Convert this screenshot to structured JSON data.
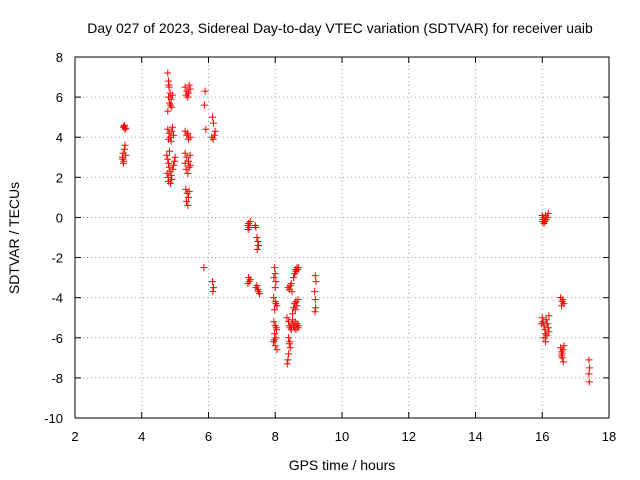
{
  "chart_data": {
    "type": "scatter",
    "title": "Day 027 of 2023, Sidereal Day-to-day VTEC variation (SDTVAR) for receiver uaib",
    "xlabel": "GPS time / hours",
    "ylabel": "SDTVAR / TECUs",
    "xlim": [
      2,
      18
    ],
    "ylim": [
      -10,
      8
    ],
    "xticks": [
      "2",
      "4",
      "6",
      "8",
      "10",
      "12",
      "14",
      "16",
      "18"
    ],
    "yticks": [
      "-10",
      "-8",
      "-6",
      "-4",
      "-2",
      "0",
      "2",
      "4",
      "6",
      "8"
    ],
    "grid": true,
    "marker": "+",
    "color": "#ff0000",
    "series": [
      {
        "name": "SDTVAR",
        "points": [
          [
            3.45,
            4.5
          ],
          [
            3.47,
            4.55
          ],
          [
            3.5,
            4.4
          ],
          [
            3.48,
            4.6
          ],
          [
            3.52,
            4.45
          ],
          [
            3.42,
            3.0
          ],
          [
            3.44,
            3.2
          ],
          [
            3.46,
            2.8
          ],
          [
            3.48,
            3.4
          ],
          [
            3.5,
            3.6
          ],
          [
            3.45,
            2.7
          ],
          [
            3.52,
            3.1
          ],
          [
            3.43,
            2.9
          ],
          [
            4.78,
            7.2
          ],
          [
            4.8,
            6.8
          ],
          [
            4.82,
            6.5
          ],
          [
            4.85,
            6.2
          ],
          [
            4.8,
            6.0
          ],
          [
            4.88,
            5.9
          ],
          [
            4.83,
            5.7
          ],
          [
            4.9,
            5.5
          ],
          [
            4.78,
            5.3
          ],
          [
            4.86,
            5.6
          ],
          [
            4.92,
            6.1
          ],
          [
            4.81,
            6.6
          ],
          [
            4.78,
            4.4
          ],
          [
            4.82,
            4.2
          ],
          [
            4.85,
            4.0
          ],
          [
            4.88,
            3.8
          ],
          [
            4.9,
            4.3
          ],
          [
            4.95,
            4.1
          ],
          [
            4.8,
            3.9
          ],
          [
            4.92,
            4.5
          ],
          [
            4.75,
            3.1
          ],
          [
            4.78,
            2.9
          ],
          [
            4.8,
            2.7
          ],
          [
            4.82,
            2.5
          ],
          [
            4.85,
            2.3
          ],
          [
            4.88,
            2.1
          ],
          [
            4.9,
            1.9
          ],
          [
            4.8,
            1.8
          ],
          [
            4.76,
            2.2
          ],
          [
            4.95,
            2.6
          ],
          [
            4.98,
            2.8
          ],
          [
            5.0,
            3.0
          ],
          [
            4.83,
            3.3
          ],
          [
            4.93,
            2.4
          ],
          [
            4.86,
            1.7
          ],
          [
            4.79,
            2.0
          ],
          [
            5.3,
            6.5
          ],
          [
            5.35,
            6.3
          ],
          [
            5.4,
            6.2
          ],
          [
            5.45,
            6.4
          ],
          [
            5.38,
            6.0
          ],
          [
            5.42,
            6.6
          ],
          [
            5.33,
            6.1
          ],
          [
            5.3,
            4.3
          ],
          [
            5.35,
            4.1
          ],
          [
            5.4,
            3.9
          ],
          [
            5.45,
            4.0
          ],
          [
            5.38,
            4.2
          ],
          [
            5.3,
            3.2
          ],
          [
            5.35,
            3.0
          ],
          [
            5.4,
            2.8
          ],
          [
            5.45,
            2.6
          ],
          [
            5.33,
            2.4
          ],
          [
            5.38,
            2.2
          ],
          [
            5.42,
            2.5
          ],
          [
            5.3,
            2.7
          ],
          [
            5.45,
            3.1
          ],
          [
            5.32,
            1.4
          ],
          [
            5.36,
            1.2
          ],
          [
            5.4,
            1.0
          ],
          [
            5.34,
            0.8
          ],
          [
            5.42,
            1.3
          ],
          [
            5.38,
            0.6
          ],
          [
            5.9,
            6.3
          ],
          [
            5.88,
            5.6
          ],
          [
            5.92,
            4.4
          ],
          [
            5.86,
            -2.5
          ],
          [
            6.12,
            5.0
          ],
          [
            6.15,
            4.7
          ],
          [
            6.18,
            4.1
          ],
          [
            6.14,
            3.9
          ],
          [
            6.2,
            4.3
          ],
          [
            6.1,
            4.0
          ],
          [
            6.12,
            -3.2
          ],
          [
            6.15,
            -3.5
          ],
          [
            6.13,
            -3.7
          ],
          [
            7.18,
            -0.4
          ],
          [
            7.2,
            -0.3
          ],
          [
            7.22,
            -0.5
          ],
          [
            7.19,
            -0.6
          ],
          [
            7.25,
            -0.2
          ],
          [
            7.2,
            -3.0
          ],
          [
            7.22,
            -3.2
          ],
          [
            7.18,
            -3.3
          ],
          [
            7.25,
            -3.1
          ],
          [
            7.42,
            -0.5
          ],
          [
            7.45,
            -1.0
          ],
          [
            7.48,
            -1.2
          ],
          [
            7.5,
            -1.4
          ],
          [
            7.46,
            -1.6
          ],
          [
            7.4,
            -0.4
          ],
          [
            7.45,
            -3.4
          ],
          [
            7.48,
            -3.6
          ],
          [
            7.5,
            -3.7
          ],
          [
            7.53,
            -3.8
          ],
          [
            7.42,
            -3.5
          ],
          [
            7.98,
            -2.5
          ],
          [
            8.0,
            -2.8
          ],
          [
            7.96,
            -3.0
          ],
          [
            8.02,
            -3.2
          ],
          [
            8.0,
            -3.5
          ],
          [
            7.95,
            -4.0
          ],
          [
            8.0,
            -4.2
          ],
          [
            8.05,
            -4.4
          ],
          [
            7.98,
            -4.6
          ],
          [
            8.02,
            -4.3
          ],
          [
            7.96,
            -5.2
          ],
          [
            8.0,
            -5.4
          ],
          [
            8.04,
            -5.6
          ],
          [
            7.98,
            -5.8
          ],
          [
            8.02,
            -6.0
          ],
          [
            7.95,
            -6.2
          ],
          [
            8.0,
            -6.4
          ],
          [
            8.05,
            -6.6
          ],
          [
            7.98,
            -6.1
          ],
          [
            8.03,
            -5.5
          ],
          [
            8.38,
            -3.5
          ],
          [
            8.42,
            -3.6
          ],
          [
            8.45,
            -3.4
          ],
          [
            8.48,
            -3.3
          ],
          [
            8.5,
            -3.7
          ],
          [
            8.35,
            -5.0
          ],
          [
            8.4,
            -5.2
          ],
          [
            8.42,
            -5.4
          ],
          [
            8.45,
            -5.5
          ],
          [
            8.48,
            -5.6
          ],
          [
            8.5,
            -5.3
          ],
          [
            8.52,
            -5.1
          ],
          [
            8.55,
            -5.4
          ],
          [
            8.58,
            -5.5
          ],
          [
            8.6,
            -5.2
          ],
          [
            8.62,
            -5.6
          ],
          [
            8.65,
            -5.3
          ],
          [
            8.68,
            -5.5
          ],
          [
            8.7,
            -5.4
          ],
          [
            8.4,
            -6.0
          ],
          [
            8.42,
            -6.3
          ],
          [
            8.45,
            -6.5
          ],
          [
            8.4,
            -6.8
          ],
          [
            8.38,
            -7.1
          ],
          [
            8.36,
            -7.3
          ],
          [
            8.44,
            -6.2
          ],
          [
            8.55,
            -3.0
          ],
          [
            8.58,
            -2.8
          ],
          [
            8.6,
            -2.6
          ],
          [
            8.62,
            -2.7
          ],
          [
            8.65,
            -2.5
          ],
          [
            8.68,
            -2.6
          ],
          [
            8.7,
            -2.5
          ],
          [
            8.55,
            -4.5
          ],
          [
            8.58,
            -4.3
          ],
          [
            8.6,
            -4.6
          ],
          [
            8.62,
            -4.2
          ],
          [
            8.65,
            -4.4
          ],
          [
            8.68,
            -4.1
          ],
          [
            8.52,
            -4.8
          ],
          [
            9.2,
            -2.9
          ],
          [
            9.22,
            -3.2
          ],
          [
            9.18,
            -3.7
          ],
          [
            9.2,
            -4.1
          ],
          [
            9.21,
            -4.5
          ],
          [
            9.19,
            -4.7
          ],
          [
            16.0,
            0.1
          ],
          [
            16.02,
            -0.1
          ],
          [
            16.05,
            0.0
          ],
          [
            16.08,
            -0.2
          ],
          [
            16.1,
            0.1
          ],
          [
            16.12,
            -0.1
          ],
          [
            16.15,
            0.0
          ],
          [
            16.18,
            0.2
          ],
          [
            16.05,
            -0.3
          ],
          [
            16.0,
            -0.2
          ],
          [
            16.0,
            -5.0
          ],
          [
            16.02,
            -5.2
          ],
          [
            16.05,
            -5.4
          ],
          [
            16.08,
            -5.6
          ],
          [
            16.1,
            -5.8
          ],
          [
            16.12,
            -5.1
          ],
          [
            16.15,
            -5.3
          ],
          [
            16.18,
            -5.5
          ],
          [
            16.2,
            -4.9
          ],
          [
            16.05,
            -6.0
          ],
          [
            16.1,
            -6.2
          ],
          [
            16.14,
            -5.9
          ],
          [
            16.2,
            -5.7
          ],
          [
            15.98,
            -5.3
          ],
          [
            16.55,
            -4.0
          ],
          [
            16.6,
            -4.2
          ],
          [
            16.62,
            -4.1
          ],
          [
            16.65,
            -4.3
          ],
          [
            16.58,
            -4.4
          ],
          [
            16.55,
            -6.5
          ],
          [
            16.58,
            -6.7
          ],
          [
            16.6,
            -6.8
          ],
          [
            16.62,
            -6.6
          ],
          [
            16.65,
            -6.4
          ],
          [
            16.6,
            -7.0
          ],
          [
            16.63,
            -7.2
          ],
          [
            16.57,
            -6.9
          ],
          [
            17.4,
            -7.1
          ],
          [
            17.42,
            -7.5
          ],
          [
            17.4,
            -7.8
          ],
          [
            17.41,
            -8.2
          ]
        ]
      }
    ]
  }
}
